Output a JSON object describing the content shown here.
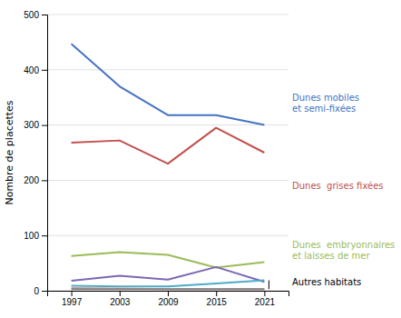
{
  "chart_data": {
    "type": "line",
    "x": [
      1997,
      2003,
      2009,
      2015,
      2021
    ],
    "xlim": [
      1994,
      2024
    ],
    "xticks": [
      1997,
      2003,
      2009,
      2015,
      2021
    ],
    "ylim": [
      0,
      500
    ],
    "yticks": [
      0,
      100,
      200,
      300,
      400,
      500
    ],
    "ylabel": "Nombre de placettes",
    "grid": true,
    "series": [
      {
        "color": "#4472C4",
        "values": [
          447,
          370,
          318,
          318,
          300
        ]
      },
      {
        "color": "#C0504D",
        "values": [
          268,
          272,
          230,
          295,
          250
        ]
      },
      {
        "color": "#9BBB59",
        "values": [
          63,
          70,
          65,
          42,
          52
        ]
      },
      {
        "color": "#7B68B5",
        "values": [
          18,
          27,
          20,
          43,
          16
        ]
      },
      {
        "color": "#4BACC6",
        "values": [
          9,
          8,
          8,
          13,
          19
        ]
      },
      {
        "color": "#D4A0A0",
        "values": [
          5,
          4,
          3,
          3,
          3
        ]
      },
      {
        "color": "#808080",
        "values": [
          3,
          3,
          3,
          3,
          3
        ]
      }
    ],
    "annotations": [
      {
        "text": "Dunes mobiles\net semi-fixées",
        "color": "#4472C4",
        "x": 2024,
        "y": 340
      },
      {
        "text": "Dunes  grises fixées",
        "color": "#C0504D",
        "x": 2024,
        "y": 190
      },
      {
        "text": "Dunes  embryonnaires\net laisses de mer",
        "color": "#9BBB59",
        "x": 2024,
        "y": 74
      },
      {
        "text": "Autres habitats",
        "color": "#000000",
        "x": 2024,
        "y": 16,
        "bracket": [
          3,
          19
        ]
      }
    ]
  }
}
